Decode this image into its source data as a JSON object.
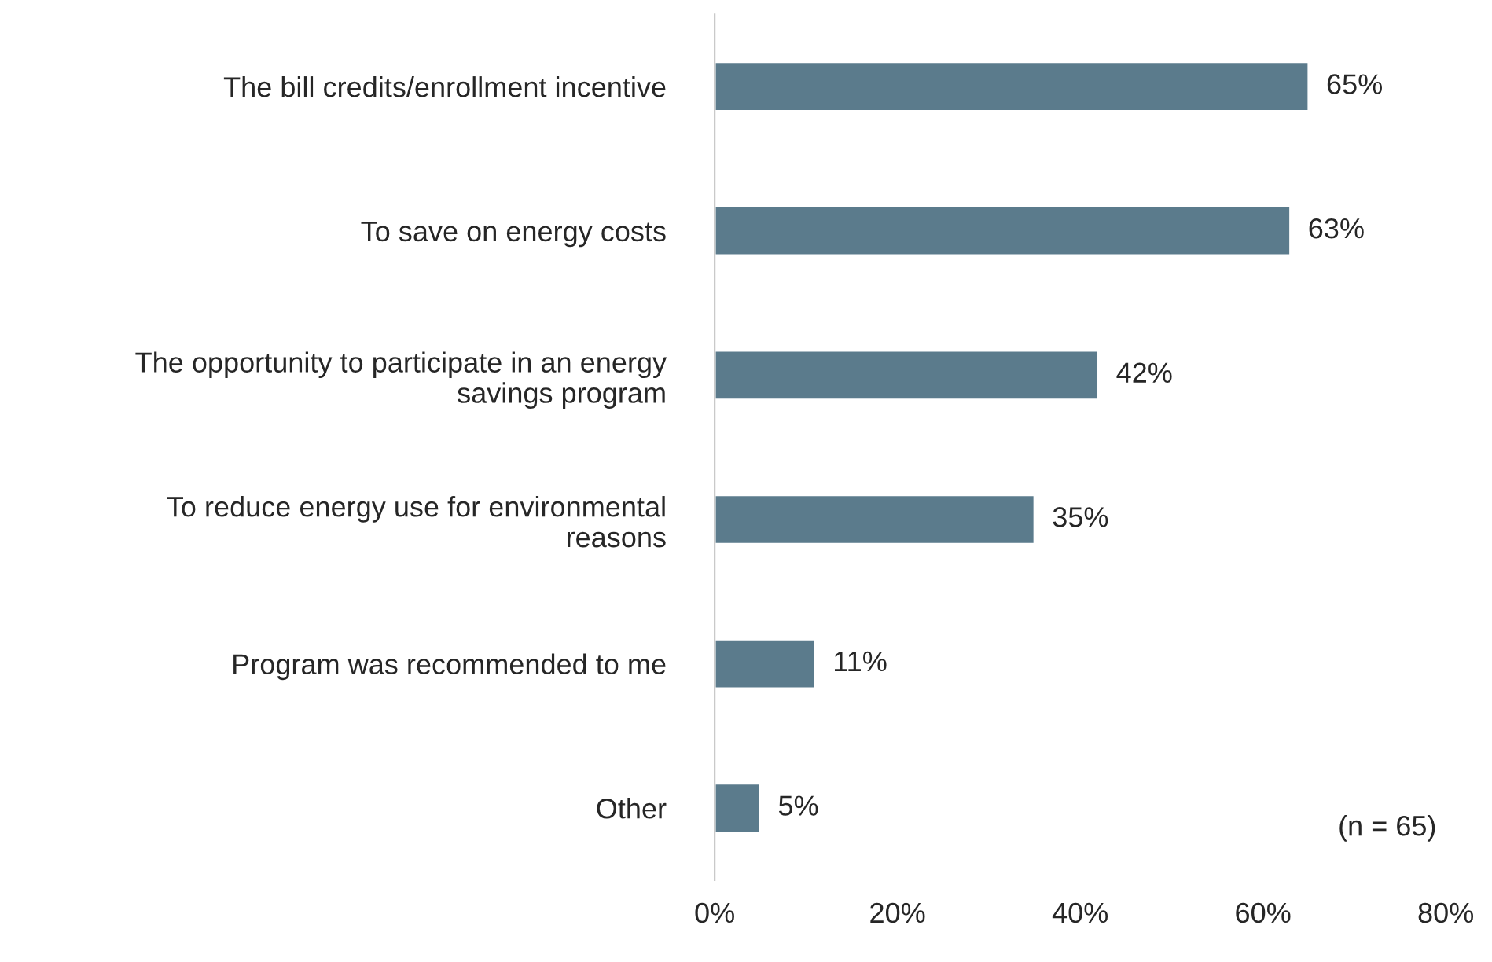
{
  "chart_data": {
    "type": "bar",
    "orientation": "horizontal",
    "categories": [
      "The bill credits/enrollment incentive",
      "To save on energy costs",
      "The opportunity to participate in an energy savings program",
      "To reduce energy use for environmental reasons",
      "Program was recommended to me",
      "Other"
    ],
    "values": [
      65,
      63,
      42,
      35,
      11,
      5
    ],
    "value_labels": [
      "65%",
      "63%",
      "42%",
      "35%",
      "11%",
      "5%"
    ],
    "color": "#5b7b8c",
    "xlim": [
      0,
      80
    ],
    "xticks": [
      {
        "value": 0,
        "label": "0%"
      },
      {
        "value": 20,
        "label": "20%"
      },
      {
        "value": 40,
        "label": "40%"
      },
      {
        "value": 60,
        "label": "60%"
      },
      {
        "value": 80,
        "label": "80%"
      }
    ],
    "annotations": [
      "(n = 65)"
    ],
    "grid": false,
    "legend": false
  }
}
